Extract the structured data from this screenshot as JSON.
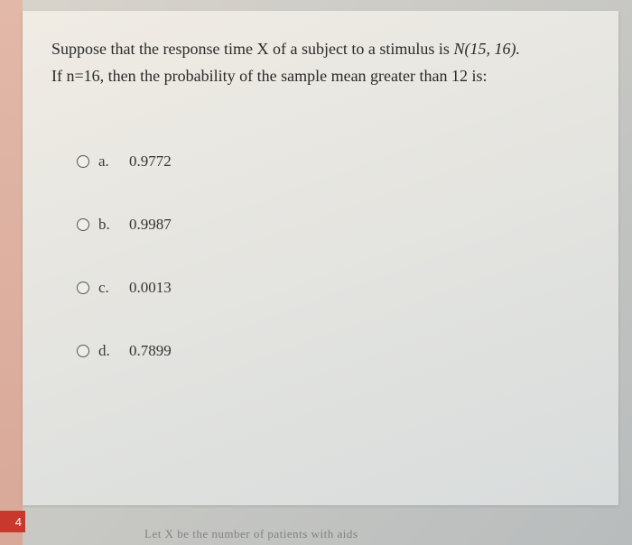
{
  "question": {
    "line1_prefix": "Suppose that the response time X of a subject to a stimulus is ",
    "line1_ital": "N(15, 16).",
    "line2": "If n=16, then the probability of the sample mean greater than 12 is:"
  },
  "options": [
    {
      "letter": "a.",
      "value": "0.9772"
    },
    {
      "letter": "b.",
      "value": "0.9987"
    },
    {
      "letter": "c.",
      "value": "0.0013"
    },
    {
      "letter": "d.",
      "value": "0.7899"
    }
  ],
  "tab_label": "4",
  "cutoff": "Let X be the number of patients with aids"
}
